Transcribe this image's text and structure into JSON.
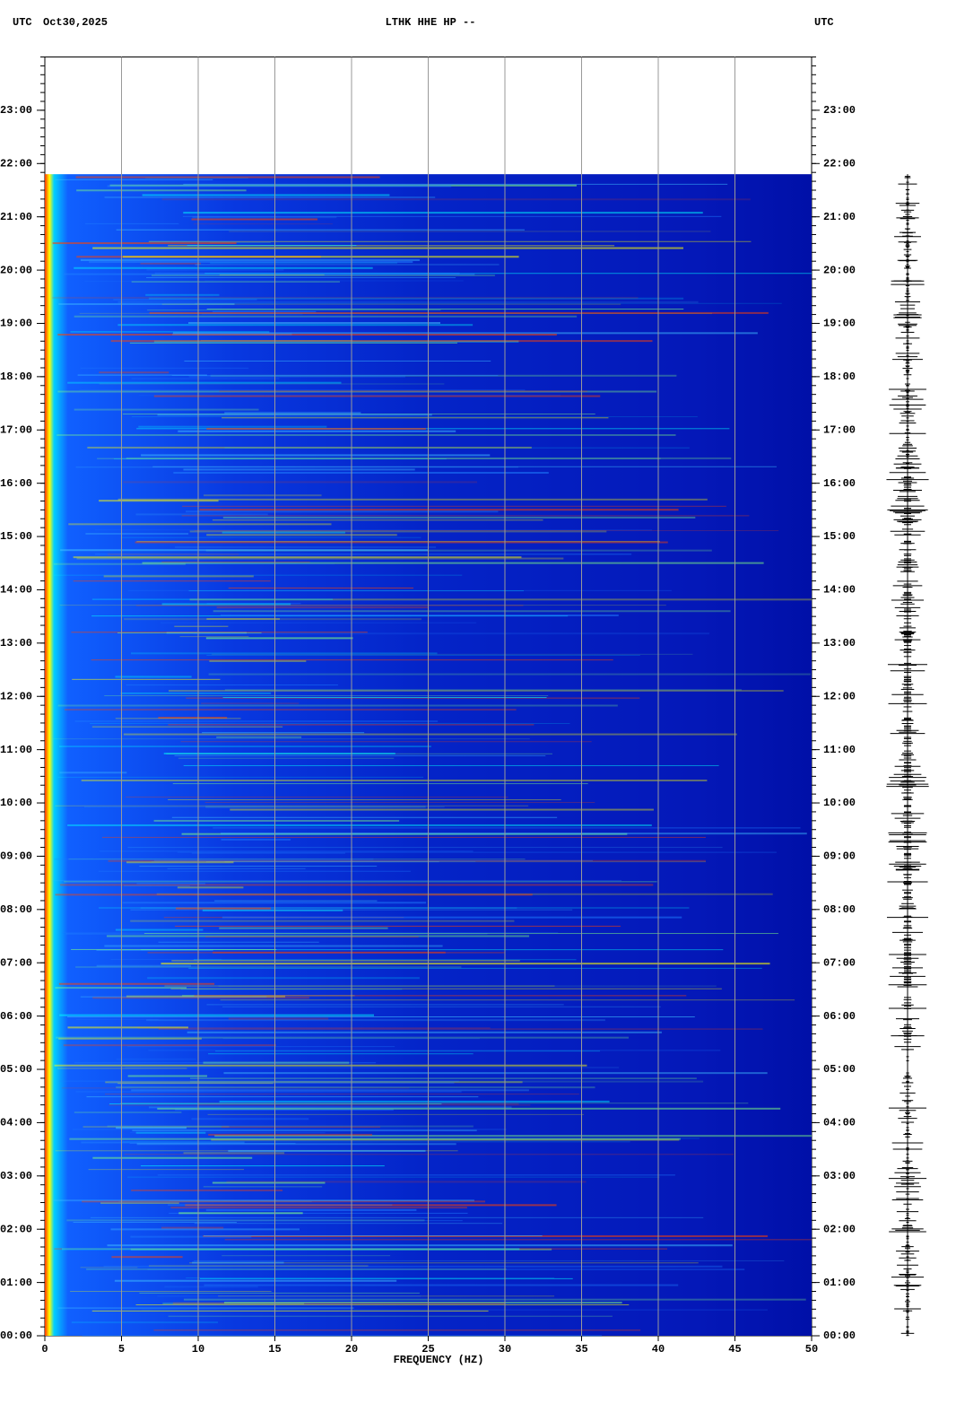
{
  "chart_data": {
    "type": "spectrogram",
    "header_left": "UTC",
    "date": "Oct30,2025",
    "title": "LTHK HHE HP --",
    "header_right": "UTC",
    "xlabel": "FREQUENCY (HZ)",
    "xlim": [
      0,
      50
    ],
    "xticks": [
      0,
      5,
      10,
      15,
      20,
      25,
      30,
      35,
      40,
      45,
      50
    ],
    "ylim": [
      0,
      24
    ],
    "yticks": [
      {
        "value": 0,
        "label": "00:00"
      },
      {
        "value": 1,
        "label": "01:00"
      },
      {
        "value": 2,
        "label": "02:00"
      },
      {
        "value": 3,
        "label": "03:00"
      },
      {
        "value": 4,
        "label": "04:00"
      },
      {
        "value": 5,
        "label": "05:00"
      },
      {
        "value": 6,
        "label": "06:00"
      },
      {
        "value": 7,
        "label": "07:00"
      },
      {
        "value": 8,
        "label": "08:00"
      },
      {
        "value": 9,
        "label": "09:00"
      },
      {
        "value": 10,
        "label": "10:00"
      },
      {
        "value": 11,
        "label": "11:00"
      },
      {
        "value": 12,
        "label": "12:00"
      },
      {
        "value": 13,
        "label": "13:00"
      },
      {
        "value": 14,
        "label": "14:00"
      },
      {
        "value": 15,
        "label": "15:00"
      },
      {
        "value": 16,
        "label": "16:00"
      },
      {
        "value": 17,
        "label": "17:00"
      },
      {
        "value": 18,
        "label": "18:00"
      },
      {
        "value": 19,
        "label": "19:00"
      },
      {
        "value": 20,
        "label": "20:00"
      },
      {
        "value": 21,
        "label": "21:00"
      },
      {
        "value": 22,
        "label": "22:00"
      },
      {
        "value": 23,
        "label": "23:00"
      }
    ],
    "data_range": [
      0,
      21.8
    ],
    "grid": true,
    "grid_color": "#999999"
  }
}
